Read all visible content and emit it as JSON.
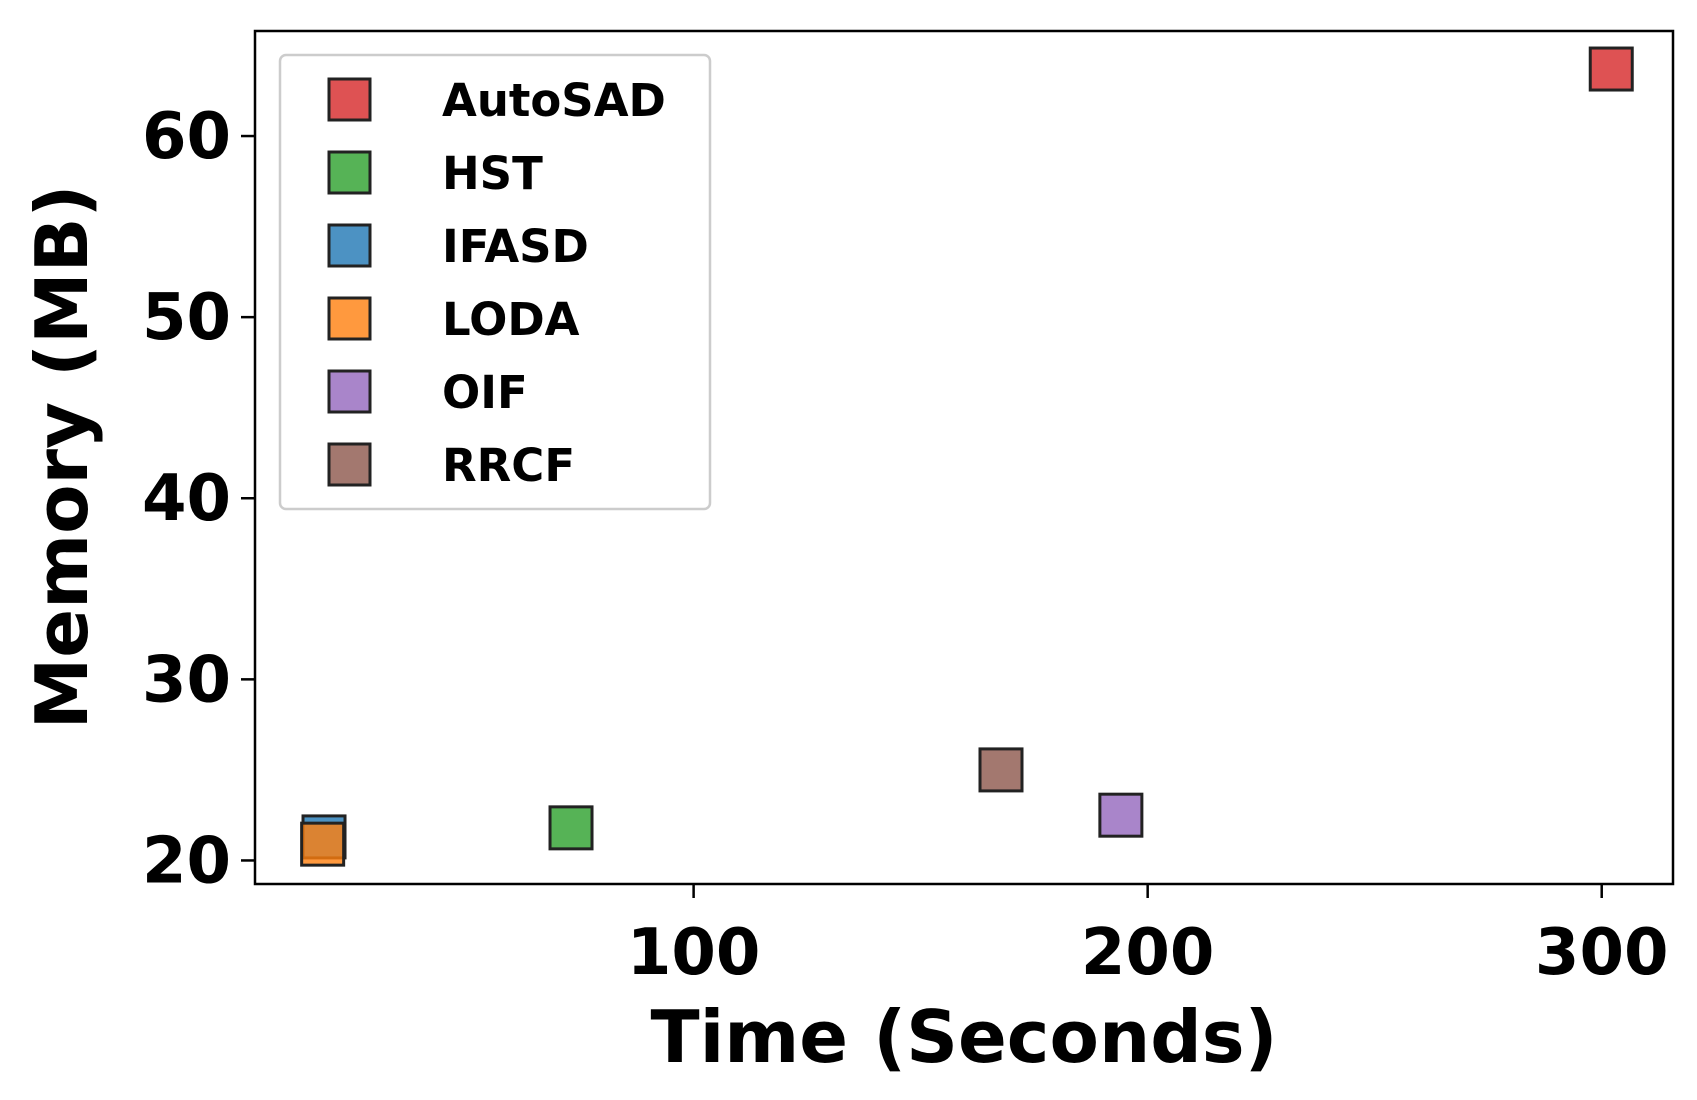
{
  "chart_data": {
    "type": "scatter",
    "xlabel": "Time (Seconds)",
    "ylabel": "Memory (MB)",
    "xlim": [
      3.4,
      315.7
    ],
    "ylim": [
      18.7,
      65.8
    ],
    "xticks": [
      100,
      200,
      300
    ],
    "yticks": [
      20,
      30,
      40,
      50,
      60
    ],
    "grid": false,
    "legend_position": "upper-left",
    "marker": "square",
    "series": [
      {
        "name": "AutoSAD",
        "color": "#d62728",
        "points": [
          {
            "x": 302.1,
            "y": 63.7
          }
        ]
      },
      {
        "name": "HST",
        "color": "#2ca02c",
        "points": [
          {
            "x": 73.0,
            "y": 21.8
          }
        ]
      },
      {
        "name": "IFASD",
        "color": "#1f77b4",
        "points": [
          {
            "x": 18.6,
            "y": 21.3
          }
        ]
      },
      {
        "name": "LODA",
        "color": "#ff7f0e",
        "points": [
          {
            "x": 18.3,
            "y": 20.9
          }
        ]
      },
      {
        "name": "OIF",
        "color": "#9467bd",
        "points": [
          {
            "x": 194.1,
            "y": 22.5
          }
        ]
      },
      {
        "name": "RRCF",
        "color": "#8c564b",
        "points": [
          {
            "x": 167.7,
            "y": 25.0
          }
        ]
      }
    ]
  }
}
